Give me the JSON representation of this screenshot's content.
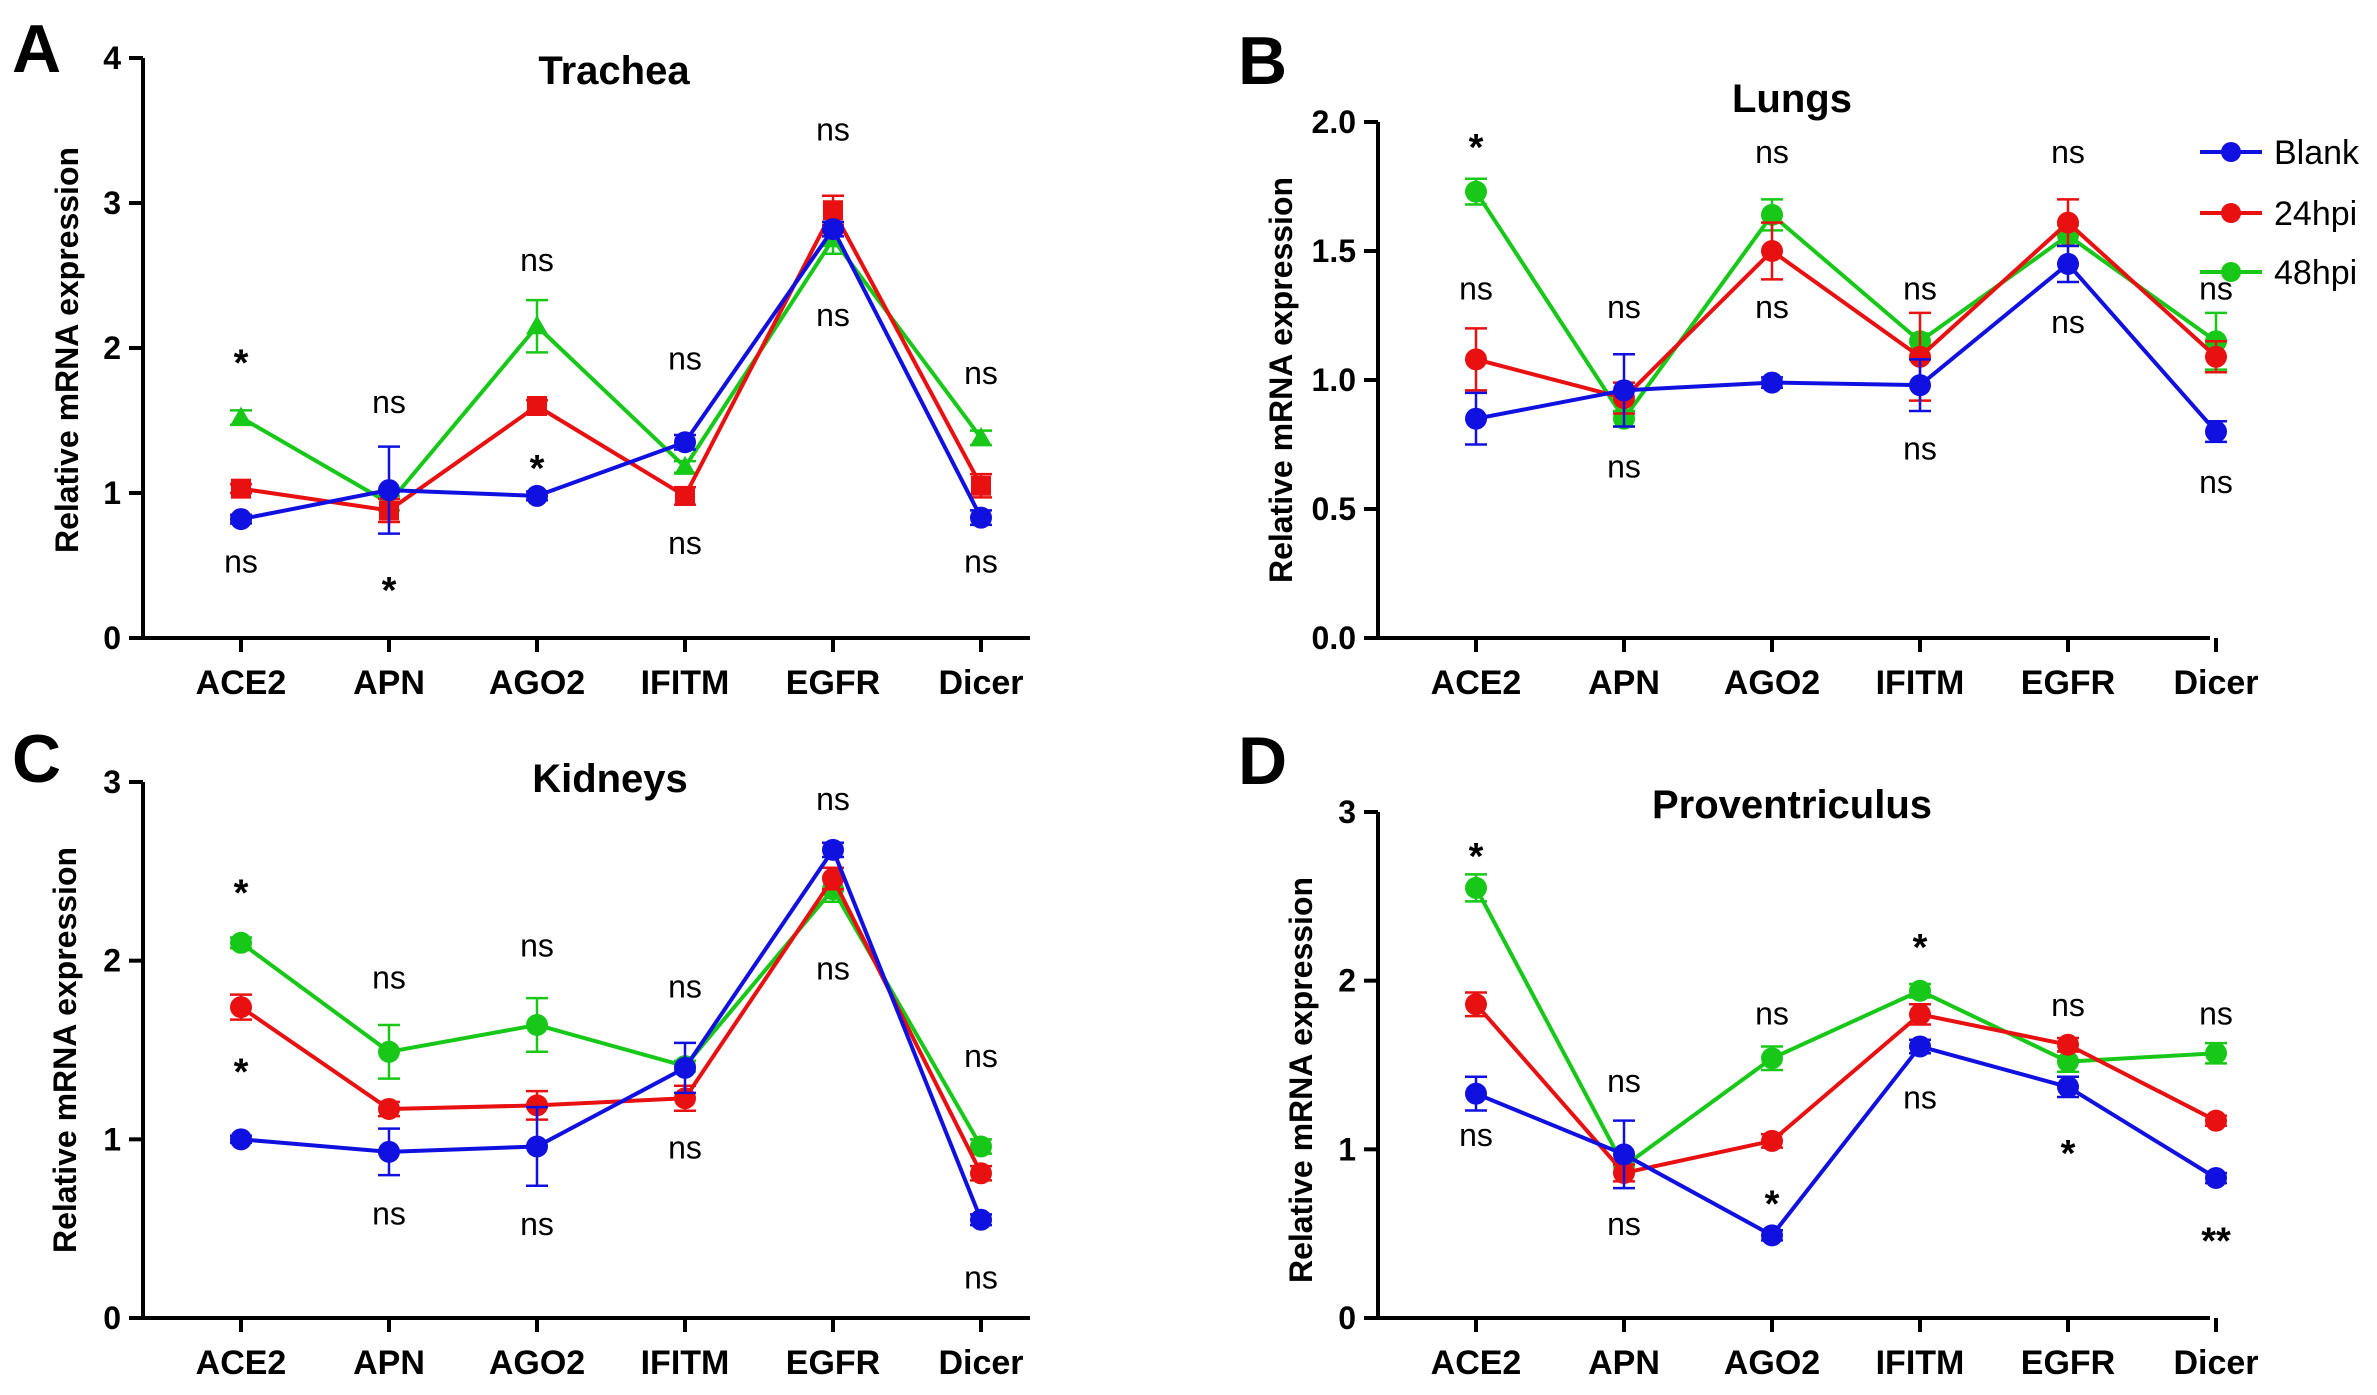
{
  "colors": {
    "blank": "#1010e0",
    "hpi24": "#e81010",
    "hpi48": "#18c818",
    "axis": "#000000"
  },
  "legend": [
    {
      "name": "Blank",
      "color": "#1010e0"
    },
    {
      "name": "24hpi",
      "color": "#e81010"
    },
    {
      "name": "48hpi",
      "color": "#18c818"
    }
  ],
  "chart_data": [
    {
      "panel": "A",
      "type": "line",
      "title": "Trachea",
      "ylabel": "Relative mRNA expression",
      "xlabel": "",
      "ylim": [
        0,
        4
      ],
      "yticks": [
        "0",
        "1",
        "2",
        "3",
        "4"
      ],
      "categories": [
        "ACE2",
        "APN",
        "AGO2",
        "IFITM",
        "EGFR",
        "Dicer"
      ],
      "series": [
        {
          "name": "Blank",
          "marker": "circle",
          "values": [
            0.82,
            1.02,
            0.98,
            1.35,
            2.82,
            0.83
          ],
          "errors": [
            0.03,
            0.3,
            0.03,
            0.05,
            0.05,
            0.05
          ]
        },
        {
          "name": "24hpi",
          "marker": "square",
          "values": [
            1.03,
            0.88,
            1.6,
            0.98,
            2.95,
            1.05
          ],
          "errors": [
            0.03,
            0.08,
            0.04,
            0.06,
            0.1,
            0.08
          ]
        },
        {
          "name": "48hpi",
          "marker": "triangle",
          "values": [
            1.52,
            0.93,
            2.15,
            1.18,
            2.75,
            1.38
          ],
          "errors": [
            0.05,
            0.05,
            0.18,
            0.04,
            0.1,
            0.05
          ]
        }
      ],
      "annotations": [
        {
          "category": "ACE2",
          "y": 1.95,
          "text": "*"
        },
        {
          "category": "ACE2",
          "y": 0.52,
          "text": "ns"
        },
        {
          "category": "APN",
          "y": 1.62,
          "text": "ns"
        },
        {
          "category": "APN",
          "y": 0.38,
          "text": "*"
        },
        {
          "category": "AGO2",
          "y": 2.6,
          "text": "ns"
        },
        {
          "category": "AGO2",
          "y": 1.22,
          "text": "*"
        },
        {
          "category": "IFITM",
          "y": 1.92,
          "text": "ns"
        },
        {
          "category": "IFITM",
          "y": 0.65,
          "text": "ns"
        },
        {
          "category": "EGFR",
          "y": 3.5,
          "text": "ns"
        },
        {
          "category": "EGFR",
          "y": 2.22,
          "text": "ns"
        },
        {
          "category": "Dicer",
          "y": 1.82,
          "text": "ns"
        },
        {
          "category": "Dicer",
          "y": 0.52,
          "text": "ns"
        }
      ]
    },
    {
      "panel": "B",
      "type": "line",
      "title": "Lungs",
      "ylabel": "Relative mRNA expression",
      "xlabel": "",
      "ylim": [
        0,
        2
      ],
      "yticks": [
        "0.0",
        "0.5",
        "1.0",
        "1.5",
        "2.0"
      ],
      "categories": [
        "ACE2",
        "APN",
        "AGO2",
        "IFITM",
        "EGFR",
        "Dicer"
      ],
      "series": [
        {
          "name": "Blank",
          "marker": "circle",
          "values": [
            0.85,
            0.96,
            0.99,
            0.98,
            1.45,
            0.8
          ],
          "errors": [
            0.1,
            0.14,
            0.02,
            0.1,
            0.07,
            0.04
          ]
        },
        {
          "name": "24hpi",
          "marker": "circle",
          "values": [
            1.08,
            0.93,
            1.5,
            1.09,
            1.61,
            1.09
          ],
          "errors": [
            0.12,
            0.06,
            0.11,
            0.17,
            0.09,
            0.06
          ]
        },
        {
          "name": "48hpi",
          "marker": "circle",
          "values": [
            1.73,
            0.85,
            1.64,
            1.15,
            1.56,
            1.15
          ],
          "errors": [
            0.05,
            0.03,
            0.06,
            0.03,
            0.04,
            0.11
          ]
        }
      ],
      "annotations": [
        {
          "category": "ACE2",
          "y": 1.93,
          "text": "*"
        },
        {
          "category": "ACE2",
          "y": 1.35,
          "text": "ns"
        },
        {
          "category": "APN",
          "y": 1.28,
          "text": "ns"
        },
        {
          "category": "APN",
          "y": 0.66,
          "text": "ns"
        },
        {
          "category": "AGO2",
          "y": 1.88,
          "text": "ns"
        },
        {
          "category": "AGO2",
          "y": 1.28,
          "text": "ns"
        },
        {
          "category": "IFITM",
          "y": 1.35,
          "text": "ns"
        },
        {
          "category": "IFITM",
          "y": 0.73,
          "text": "ns"
        },
        {
          "category": "EGFR",
          "y": 1.88,
          "text": "ns"
        },
        {
          "category": "EGFR",
          "y": 1.22,
          "text": "ns"
        },
        {
          "category": "Dicer",
          "y": 1.35,
          "text": "ns"
        },
        {
          "category": "Dicer",
          "y": 0.6,
          "text": "ns"
        }
      ]
    },
    {
      "panel": "C",
      "type": "line",
      "title": "Kidneys",
      "ylabel": "Relative mRNA expression",
      "xlabel": "",
      "ylim": [
        0,
        3
      ],
      "yticks": [
        "0",
        "1",
        "2",
        "3"
      ],
      "categories": [
        "ACE2",
        "APN",
        "AGO2",
        "IFITM",
        "EGFR",
        "Dicer"
      ],
      "series": [
        {
          "name": "Blank",
          "marker": "circle",
          "values": [
            1.0,
            0.93,
            0.96,
            1.4,
            2.62,
            0.55
          ],
          "errors": [
            0.02,
            0.13,
            0.22,
            0.14,
            0.04,
            0.03
          ]
        },
        {
          "name": "24hpi",
          "marker": "circle",
          "values": [
            1.74,
            1.17,
            1.19,
            1.23,
            2.46,
            0.81
          ],
          "errors": [
            0.07,
            0.04,
            0.08,
            0.07,
            0.06,
            0.04
          ]
        },
        {
          "name": "48hpi",
          "marker": "circle",
          "values": [
            2.1,
            1.49,
            1.64,
            1.41,
            2.4,
            0.96
          ],
          "errors": [
            0.03,
            0.15,
            0.15,
            0.03,
            0.07,
            0.04
          ]
        }
      ],
      "annotations": [
        {
          "category": "ACE2",
          "y": 2.42,
          "text": "*"
        },
        {
          "category": "ACE2",
          "y": 1.42,
          "text": "*"
        },
        {
          "category": "APN",
          "y": 1.9,
          "text": "ns"
        },
        {
          "category": "APN",
          "y": 0.58,
          "text": "ns"
        },
        {
          "category": "AGO2",
          "y": 2.08,
          "text": "ns"
        },
        {
          "category": "AGO2",
          "y": 0.52,
          "text": "ns"
        },
        {
          "category": "IFITM",
          "y": 1.85,
          "text": "ns"
        },
        {
          "category": "IFITM",
          "y": 0.95,
          "text": "ns"
        },
        {
          "category": "EGFR",
          "y": 2.9,
          "text": "ns"
        },
        {
          "category": "EGFR",
          "y": 1.95,
          "text": "ns"
        },
        {
          "category": "Dicer",
          "y": 1.46,
          "text": "ns"
        },
        {
          "category": "Dicer",
          "y": 0.22,
          "text": "ns"
        }
      ]
    },
    {
      "panel": "D",
      "type": "line",
      "title": "Proventriculus",
      "ylabel": "Relative mRNA expression",
      "xlabel": "",
      "ylim": [
        0,
        3
      ],
      "yticks": [
        "0",
        "1",
        "2",
        "3"
      ],
      "categories": [
        "ACE2",
        "APN",
        "AGO2",
        "IFITM",
        "EGFR",
        "Dicer"
      ],
      "series": [
        {
          "name": "Blank",
          "marker": "circle",
          "values": [
            1.33,
            0.97,
            0.49,
            1.61,
            1.37,
            0.83
          ],
          "errors": [
            0.1,
            0.2,
            0.03,
            0.04,
            0.06,
            0.03
          ]
        },
        {
          "name": "24hpi",
          "marker": "circle",
          "values": [
            1.86,
            0.86,
            1.05,
            1.8,
            1.62,
            1.17
          ],
          "errors": [
            0.07,
            0.05,
            0.04,
            0.06,
            0.04,
            0.03
          ]
        },
        {
          "name": "48hpi",
          "marker": "circle",
          "values": [
            2.55,
            0.9,
            1.54,
            1.94,
            1.52,
            1.57
          ],
          "errors": [
            0.08,
            0.04,
            0.07,
            0.04,
            0.06,
            0.06
          ]
        }
      ],
      "annotations": [
        {
          "category": "ACE2",
          "y": 2.78,
          "text": "*"
        },
        {
          "category": "ACE2",
          "y": 1.08,
          "text": "ns"
        },
        {
          "category": "APN",
          "y": 1.4,
          "text": "ns"
        },
        {
          "category": "APN",
          "y": 0.55,
          "text": "ns"
        },
        {
          "category": "AGO2",
          "y": 1.8,
          "text": "ns"
        },
        {
          "category": "AGO2",
          "y": 0.72,
          "text": "*"
        },
        {
          "category": "IFITM",
          "y": 2.24,
          "text": "*"
        },
        {
          "category": "IFITM",
          "y": 1.3,
          "text": "ns"
        },
        {
          "category": "EGFR",
          "y": 1.85,
          "text": "ns"
        },
        {
          "category": "EGFR",
          "y": 1.02,
          "text": "*"
        },
        {
          "category": "Dicer",
          "y": 1.8,
          "text": "ns"
        },
        {
          "category": "Dicer",
          "y": 0.5,
          "text": "**"
        }
      ]
    }
  ]
}
